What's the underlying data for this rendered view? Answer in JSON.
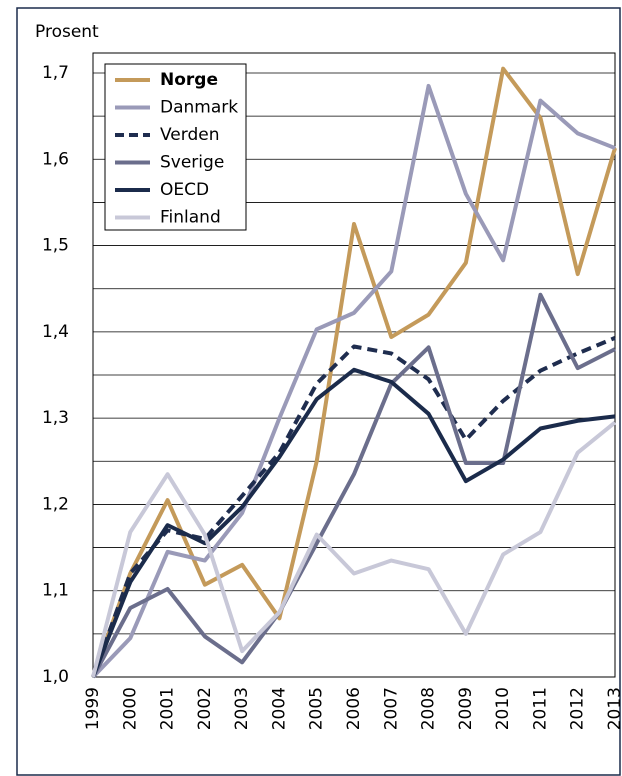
{
  "chart_data": {
    "type": "line",
    "title": "Prosent",
    "categories": [
      "1999",
      "2000",
      "2001",
      "2002",
      "2003",
      "2004",
      "2005",
      "2006",
      "2007",
      "2008",
      "2009",
      "2010",
      "2011",
      "2012",
      "2013"
    ],
    "ylim": [
      1.0,
      1.7
    ],
    "yticks": [
      {
        "value": 1.0,
        "label": "1,0"
      },
      {
        "value": 1.1,
        "label": "1,1"
      },
      {
        "value": 1.2,
        "label": "1,2"
      },
      {
        "value": 1.3,
        "label": "1,3"
      },
      {
        "value": 1.4,
        "label": "1,4"
      },
      {
        "value": 1.5,
        "label": "1,5"
      },
      {
        "value": 1.6,
        "label": "1,6"
      },
      {
        "value": 1.7,
        "label": "1,7"
      }
    ],
    "yminor": [
      1.05,
      1.15,
      1.25,
      1.35,
      1.45,
      1.55,
      1.65
    ],
    "grid": true,
    "legend": "upper left",
    "series": [
      {
        "name": "Norge",
        "color": "#c49a5a",
        "dash": false,
        "bold": true,
        "values": [
          1.0,
          1.12,
          1.205,
          1.107,
          1.13,
          1.068,
          1.25,
          1.525,
          1.394,
          1.42,
          1.48,
          1.705,
          1.648,
          1.467,
          1.613
        ]
      },
      {
        "name": "Danmark",
        "color": "#9a9ab8",
        "dash": false,
        "values": [
          1.0,
          1.045,
          1.145,
          1.135,
          1.19,
          1.3,
          1.403,
          1.422,
          1.47,
          1.685,
          1.56,
          1.483,
          1.668,
          1.63,
          1.613
        ]
      },
      {
        "name": "Verden",
        "color": "#1f2d4f",
        "dash": true,
        "values": [
          1.0,
          1.12,
          1.17,
          1.16,
          1.21,
          1.26,
          1.34,
          1.383,
          1.375,
          1.345,
          1.275,
          1.32,
          1.355,
          1.375,
          1.393
        ]
      },
      {
        "name": "Sverige",
        "color": "#6b6e8c",
        "dash": false,
        "values": [
          1.0,
          1.08,
          1.102,
          1.047,
          1.017,
          1.075,
          1.155,
          1.235,
          1.34,
          1.382,
          1.248,
          1.248,
          1.443,
          1.358,
          1.38
        ]
      },
      {
        "name": "OECD",
        "color": "#1b2b4b",
        "dash": false,
        "values": [
          1.0,
          1.11,
          1.176,
          1.155,
          1.197,
          1.255,
          1.322,
          1.356,
          1.342,
          1.305,
          1.227,
          1.252,
          1.288,
          1.297,
          1.302
        ]
      },
      {
        "name": "Finland",
        "color": "#c8c8d8",
        "dash": false,
        "values": [
          1.0,
          1.168,
          1.235,
          1.165,
          1.03,
          1.075,
          1.165,
          1.12,
          1.135,
          1.125,
          1.05,
          1.142,
          1.168,
          1.26,
          1.295
        ]
      }
    ]
  }
}
